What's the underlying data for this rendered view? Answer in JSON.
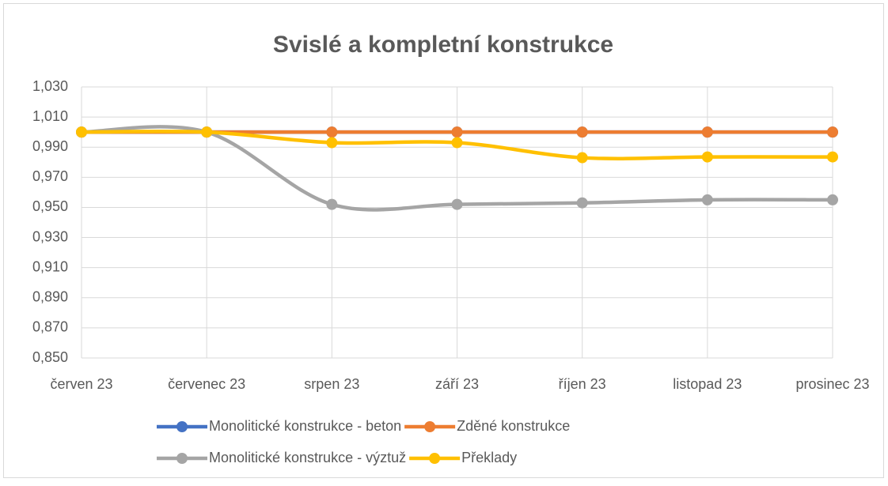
{
  "chart_data": {
    "type": "line",
    "title": "Svislé a kompletní konstrukce",
    "categories": [
      "červen 23",
      "červenec 23",
      "srpen 23",
      "září 23",
      "říjen 23",
      "listopad 23",
      "prosinec 23"
    ],
    "series": [
      {
        "name": "Monolitické konstrukce - beton",
        "color": "#4472c4",
        "values": [
          1.0,
          1.0,
          1.0,
          1.0,
          1.0,
          1.0,
          1.0
        ]
      },
      {
        "name": "Zděné konstrukce",
        "color": "#ed7d31",
        "values": [
          1.0,
          1.0,
          1.0,
          1.0,
          1.0,
          1.0,
          1.0
        ]
      },
      {
        "name": "Monolitické konstrukce - výztuž",
        "color": "#a5a5a5",
        "values": [
          1.0,
          1.0,
          0.952,
          0.952,
          0.953,
          0.955,
          0.955
        ]
      },
      {
        "name": "Překlady",
        "color": "#ffc000",
        "values": [
          1.0,
          1.0,
          0.993,
          0.993,
          0.983,
          0.9835,
          0.9835
        ]
      }
    ],
    "ylim": [
      0.85,
      1.03
    ],
    "yticks": [
      {
        "value": 0.85,
        "label": "0,850"
      },
      {
        "value": 0.87,
        "label": "0,870"
      },
      {
        "value": 0.89,
        "label": "0,890"
      },
      {
        "value": 0.91,
        "label": "0,910"
      },
      {
        "value": 0.93,
        "label": "0,930"
      },
      {
        "value": 0.95,
        "label": "0,950"
      },
      {
        "value": 0.97,
        "label": "0,970"
      },
      {
        "value": 0.99,
        "label": "0,990"
      },
      {
        "value": 1.01,
        "label": "1,010"
      },
      {
        "value": 1.03,
        "label": "1,030"
      }
    ],
    "grid": true,
    "smooth": true,
    "legend": "bottom"
  }
}
